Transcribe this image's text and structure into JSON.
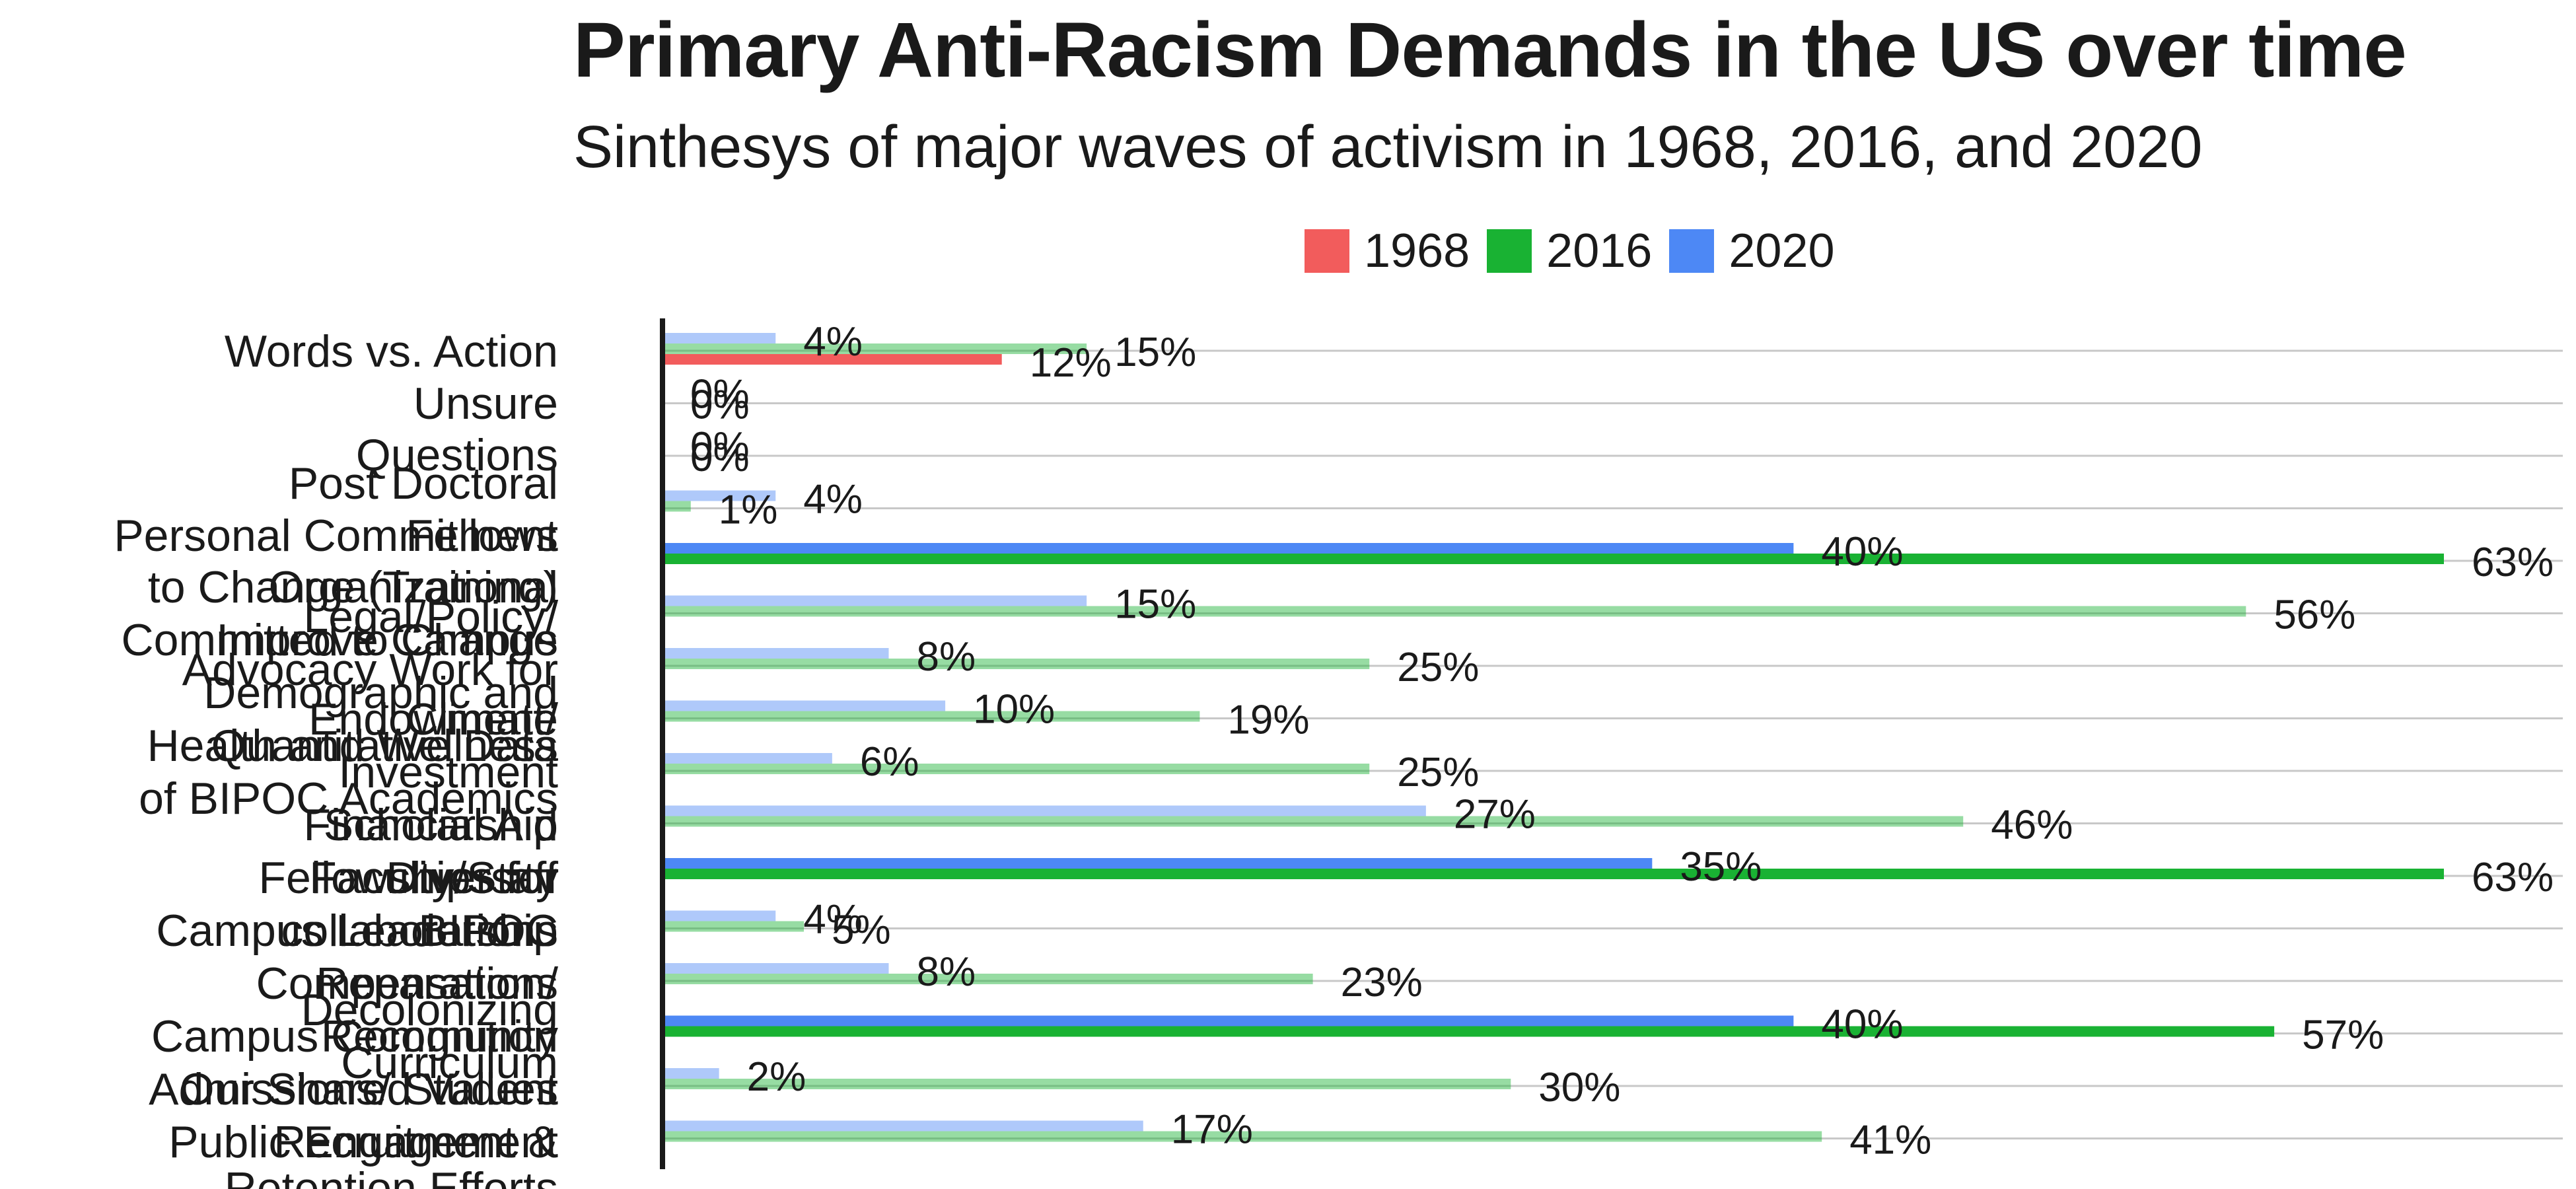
{
  "title": "Primary Anti-Racism Demands in the US over time",
  "subtitle": "Sinthesys of major waves of activism in 1968, 2016, and 2020",
  "legend": [
    {
      "label": "1968",
      "color": "#f25c5c"
    },
    {
      "label": "2016",
      "color": "#19b233"
    },
    {
      "label": "2020",
      "color": "#4d88f5"
    }
  ],
  "chart_data": {
    "type": "bar",
    "orientation": "horizontal",
    "title": "Primary Anti-Racism Demands in the US over time",
    "subtitle": "Sinthesys of major waves of activism in 1968, 2016, and 2020",
    "xlim": [
      0,
      63
    ],
    "value_suffix": "%",
    "grid": "horizontal lines between categories",
    "legend_position": "top-center",
    "categories": [
      "Words vs. Action",
      "Unsure",
      "Questions",
      "Post Doctoral Fellows",
      "Personal Commitment to Change (Training)",
      "Organizational Policy/ Practice",
      "Legal/Policy/ Advocacy Work for Change",
      "Improve Campus Climate",
      "Endowment/ Investment",
      "Demographic and Quantitative Data",
      "Health and Wellness of BIPOC",
      "Scholarship/ Financial Aid",
      "Faculty/Staff Diversity",
      "Fellowships for BIPOC",
      "Campus Leadership",
      "collaborations",
      "Compensation/ Reparations",
      "Campus Community Decolonizing",
      "Curriculum",
      "Admissions/ Student Recruitment & Retention Efforts",
      "Public Engagement",
      "Our Shared Values"
    ],
    "series": [
      {
        "name": "1968",
        "color": "#f25c5c",
        "values": [
          12,
          0,
          0,
          0,
          0,
          0,
          0,
          0,
          0,
          0,
          0,
          0,
          0,
          0,
          0,
          0,
          0,
          0,
          0,
          0,
          0,
          0
        ]
      },
      {
        "name": "2016",
        "color": "#19b233",
        "values": [
          15,
          0,
          0,
          1,
          63,
          56,
          25,
          19,
          25,
          46,
          63,
          5,
          23,
          57,
          30,
          41,
          0,
          0,
          0,
          0,
          0,
          0
        ]
      },
      {
        "name": "2020",
        "color": "#4d88f5",
        "values": [
          4,
          0,
          0,
          4,
          40,
          15,
          8,
          10,
          6,
          27,
          35,
          4,
          8,
          40,
          2,
          17,
          0,
          0,
          0,
          0,
          0,
          0
        ]
      }
    ],
    "full_opacity_series": {
      "1968": [
        0
      ],
      "2016": [
        4,
        10,
        13
      ],
      "2020": [
        4,
        10,
        13
      ]
    },
    "y_labels_drawn": [
      "Words vs. Action",
      "Unsure",
      "Questions",
      "Post Doctoral",
      "Personal Commitment",
      "Fellows",
      "to Change (Training)",
      "Organizational",
      "Policy/",
      "Legal/Policy/",
      "Improve Campus",
      "Committed to Change",
      "Advocacy Work for",
      "Demographic and",
      "Endowment/",
      "Climate",
      "Health and Wellness",
      "Quantitative Data",
      "Investment",
      "of BIPOC Academics",
      "Financial Aid",
      "Scholarship",
      "Faculty/Staff",
      "Fellowships for",
      "Diversity",
      "Campus Leadership",
      "collaborations",
      "BIPOC",
      "Compensation/",
      "Reparations",
      "Decolonizing",
      "Campus Community",
      "Recognition",
      "Curriculum",
      "Admissions/ Student",
      "Our Shared Values",
      "Public Engagement",
      "Recruitment &",
      "Retention Efforts"
    ]
  }
}
